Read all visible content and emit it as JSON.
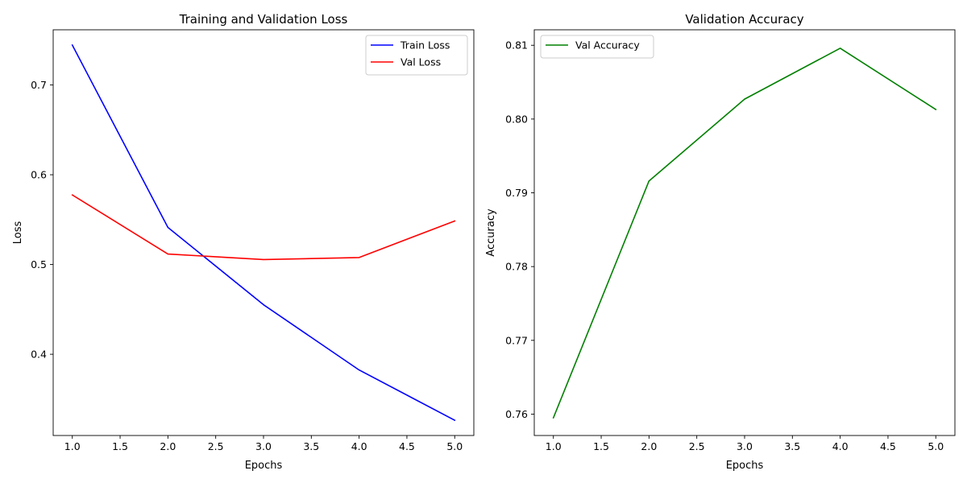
{
  "chart_data": [
    {
      "type": "line",
      "title": "Training and Validation Loss",
      "xlabel": "Epochs",
      "ylabel": "Loss",
      "xlim": [
        0.8,
        5.2
      ],
      "ylim": [
        0.3095,
        0.7615
      ],
      "xticks": [
        1.0,
        1.5,
        2.0,
        2.5,
        3.0,
        3.5,
        4.0,
        4.5,
        5.0
      ],
      "xtick_labels": [
        "1.0",
        "1.5",
        "2.0",
        "2.5",
        "3.0",
        "3.5",
        "4.0",
        "4.5",
        "5.0"
      ],
      "yticks": [
        0.4,
        0.5,
        0.6,
        0.7
      ],
      "ytick_labels": [
        "0.4",
        "0.5",
        "0.6",
        "0.7"
      ],
      "x": [
        1,
        2,
        3,
        4,
        5
      ],
      "series": [
        {
          "name": "Train Loss",
          "color": "#0000ff",
          "values": [
            0.7445,
            0.5413,
            0.4552,
            0.3825,
            0.3265
          ]
        },
        {
          "name": "Val Loss",
          "color": "#ff0000",
          "values": [
            0.5775,
            0.5117,
            0.5055,
            0.5078,
            0.5485
          ]
        }
      ],
      "grid": false,
      "legend_loc": "upper right"
    },
    {
      "type": "line",
      "title": "Validation Accuracy",
      "xlabel": "Epochs",
      "ylabel": "Accuracy",
      "xlim": [
        0.8,
        5.2
      ],
      "ylim": [
        0.7571,
        0.8121
      ],
      "xticks": [
        1.0,
        1.5,
        2.0,
        2.5,
        3.0,
        3.5,
        4.0,
        4.5,
        5.0
      ],
      "xtick_labels": [
        "1.0",
        "1.5",
        "2.0",
        "2.5",
        "3.0",
        "3.5",
        "4.0",
        "4.5",
        "5.0"
      ],
      "yticks": [
        0.76,
        0.77,
        0.78,
        0.79,
        0.8,
        0.81
      ],
      "ytick_labels": [
        "0.76",
        "0.77",
        "0.78",
        "0.79",
        "0.80",
        "0.81"
      ],
      "x": [
        1,
        2,
        3,
        4,
        5
      ],
      "series": [
        {
          "name": "Val Accuracy",
          "color": "#008000",
          "values": [
            0.7595,
            0.7916,
            0.8027,
            0.8096,
            0.8013
          ]
        }
      ],
      "grid": false,
      "legend_loc": "upper left"
    }
  ]
}
